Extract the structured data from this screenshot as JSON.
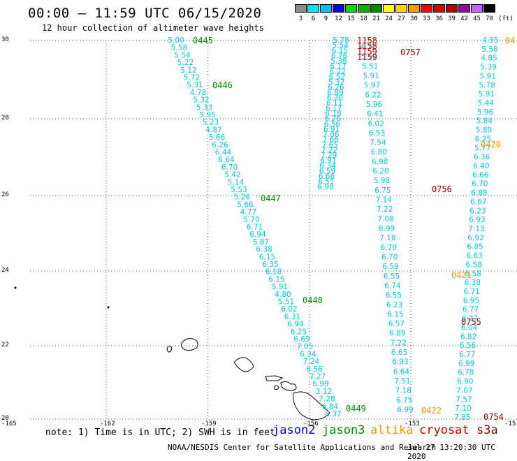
{
  "header": {
    "title": "00:00 – 11:59 UTC 06/15/2020",
    "subtitle": "12 hour collection of altimeter wave heights"
  },
  "legend": {
    "unit": "(ft)",
    "items": [
      {
        "label": "3",
        "color": "#8c8c8c"
      },
      {
        "label": "6",
        "color": "#00e5e5"
      },
      {
        "label": "9",
        "color": "#00bfff"
      },
      {
        "label": "12",
        "color": "#0000ff"
      },
      {
        "label": "15",
        "color": "#00dc00"
      },
      {
        "label": "18",
        "color": "#00b400"
      },
      {
        "label": "21",
        "color": "#008c00"
      },
      {
        "label": "24",
        "color": "#ffff00"
      },
      {
        "label": "27",
        "color": "#ffd200"
      },
      {
        "label": "30",
        "color": "#ff9600"
      },
      {
        "label": "33",
        "color": "#ff0000"
      },
      {
        "label": "36",
        "color": "#dc0000"
      },
      {
        "label": "39",
        "color": "#b40000"
      },
      {
        "label": "42",
        "color": "#a000a0"
      },
      {
        "label": "45",
        "color": "#c864ff"
      },
      {
        "label": "70",
        "color": "#000000"
      }
    ]
  },
  "axes": {
    "y_ticks": [
      "30",
      "28",
      "26",
      "24",
      "22",
      "20"
    ],
    "x_ticks": [
      "-165",
      "-162",
      "-159",
      "-156",
      "-153",
      "-15"
    ]
  },
  "colors": {
    "jason2": "#0000ff",
    "jason3": "#008c00",
    "altika": "#ff9600",
    "cryosat": "#cc0000",
    "s3a": "#8b0000",
    "value": "#00c8e6"
  },
  "footer": {
    "note": "note: 1) Time is in UTC; 2) SWH is in feet",
    "sats": [
      "jason2",
      "jason3",
      "altika",
      "cryosat",
      "s3a"
    ],
    "credit": "NOAA/NESDIS Center for Satellite Applications and Research",
    "timestamp": "Jul 27 13:20:30 UTC 2020"
  },
  "tracks": [
    {
      "name": "jason3-pass-a",
      "start": [
        252,
        57
      ],
      "end": [
        477,
        592
      ],
      "values": [
        "5.00",
        "5.58",
        "5.54",
        "5.22",
        "5.12",
        "5.72",
        "5.31",
        "4.78",
        "5.32",
        "5.33",
        "5.95",
        "5.23",
        "4.87",
        "5.66",
        "6.26",
        "6.44",
        "6.64",
        "6.70",
        "5.42",
        "5.14",
        "5.53",
        "5.26",
        "5.66",
        "4.77",
        "5.70",
        "6.71",
        "6.94",
        "5.87",
        "6.38",
        "6.15",
        "6.35",
        "6.18",
        "6.15",
        "5.91",
        "4.80",
        "5.51",
        "6.02",
        "6.31",
        "6.94",
        "6.25",
        "6.69",
        "7.05",
        "6.34",
        "7.24",
        "6.56",
        "7.27",
        "6.99",
        "3.12",
        "7.28",
        "6.84",
        "8.37"
      ]
    },
    {
      "name": "jason3-pass-b",
      "start": [
        488,
        57
      ],
      "end": [
        466,
        267
      ],
      "values": [
        "5.78",
        "5.54",
        "6.15",
        "6.76",
        "5.38",
        "6.17",
        "6.22",
        "6.52",
        "5.32",
        "6.26",
        "6.89",
        "6.30",
        "6.11",
        "6.17",
        "6.18",
        "6.26",
        "6.56",
        "6.91",
        "7.06",
        "7.66",
        "7.65",
        "7.22",
        "7.29",
        "6.91",
        "6.34",
        "6.59",
        "6.66",
        "6.51",
        "6.98"
      ]
    },
    {
      "name": "s3a-pass-a",
      "start": [
        527,
        67
      ],
      "end": [
        580,
        586
      ],
      "values": [
        "4.72",
        "5.59",
        "5.51",
        "5.91",
        "5.97",
        "6.22",
        "5.96",
        "6.41",
        "6.02",
        "6.53",
        "7.54",
        "6.80",
        "6.98",
        "6.20",
        "5.98",
        "6.75",
        "7.14",
        "7.22",
        "7.08",
        "6.99",
        "7.18",
        "6.70",
        "6.70",
        "6.59",
        "6.55",
        "6.74",
        "6.55",
        "6.23",
        "6.15",
        "6.57",
        "6.89",
        "7.22",
        "6.65",
        "6.93",
        "6.64",
        "7.51",
        "7.18",
        "6.75",
        "6.99"
      ]
    },
    {
      "name": "s3a-pass-b",
      "start": [
        702,
        57
      ],
      "end": [
        662,
        597
      ],
      "values": [
        "4.55",
        "5.58",
        "4.85",
        "5.39",
        "5.91",
        "5.78",
        "5.91",
        "5.44",
        "5.96",
        "5.84",
        "5.89",
        "6.25",
        "5.77",
        "6.36",
        "6.40",
        "6.66",
        "6.70",
        "6.88",
        "6.67",
        "6.23",
        "6.93",
        "7.13",
        "6.92",
        "6.85",
        "6.63",
        "6.58",
        "6.58",
        "6.38",
        "6.71",
        "6.95",
        "6.77",
        "6.27",
        "6.04",
        "6.82",
        "6.56",
        "6.77",
        "6.99",
        "6.78",
        "6.90",
        "7.07",
        "7.57",
        "7.10",
        "7.85"
      ]
    }
  ],
  "pass_labels": [
    {
      "text": "0445",
      "sat": "jason3"
    },
    {
      "text": "0446",
      "sat": "jason3"
    },
    {
      "text": "0447",
      "sat": "jason3"
    },
    {
      "text": "0448",
      "sat": "jason3"
    },
    {
      "text": "0449",
      "sat": "jason3"
    },
    {
      "text": "1158",
      "sat": "cryosat"
    },
    {
      "text": "1158",
      "sat": "cryosat"
    },
    {
      "text": "1159",
      "sat": "cryosat"
    },
    {
      "text": "1159",
      "sat": "cryosat"
    },
    {
      "text": "0757",
      "sat": "s3a"
    },
    {
      "text": "0756",
      "sat": "s3a"
    },
    {
      "text": "0755",
      "sat": "s3a"
    },
    {
      "text": "0754",
      "sat": "s3a"
    },
    {
      "text": "04",
      "sat": "altika"
    },
    {
      "text": "0420",
      "sat": "altika"
    },
    {
      "text": "0421",
      "sat": "altika"
    },
    {
      "text": "0422",
      "sat": "altika"
    }
  ]
}
